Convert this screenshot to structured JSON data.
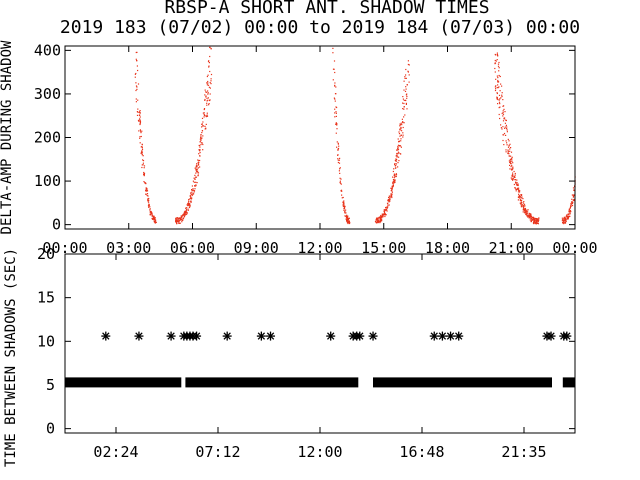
{
  "chart_data": [
    {
      "type": "scatter",
      "title": "RBSP-A SHORT ANT. SHADOW TIMES",
      "subtitle": "2019 183 (07/02) 00:00 to 2019 184 (07/03) 00:00",
      "ylabel": "DELTA-AMP DURING SHADOW",
      "xlim": [
        0,
        24
      ],
      "ylim": [
        -10,
        410
      ],
      "x_tick_labels": [
        "00:00",
        "03:00",
        "06:00",
        "09:00",
        "12:00",
        "15:00",
        "18:00",
        "21:00",
        "00:00"
      ],
      "y_tick_labels": [
        "0",
        "100",
        "200",
        "300",
        "400"
      ],
      "y_ticks": [
        0,
        100,
        200,
        300,
        400
      ],
      "marker_color": "#e8341c",
      "grid": false,
      "clusters": [
        {
          "name": "A1",
          "t": [
            3.3,
            4.3
          ],
          "ymax": 400,
          "side": "down"
        },
        {
          "name": "A2",
          "t": [
            5.2,
            6.9
          ],
          "ymax": 400,
          "side": "up"
        },
        {
          "name": "B1",
          "t": [
            12.6,
            13.4
          ],
          "ymax": 400,
          "side": "down"
        },
        {
          "name": "B2",
          "t": [
            14.6,
            16.2
          ],
          "ymax": 400,
          "side": "up"
        },
        {
          "name": "C1",
          "t": [
            20.2,
            22.3
          ],
          "ymax": 400,
          "side": "down"
        },
        {
          "name": "C2",
          "t": [
            23.4,
            24.0
          ],
          "ymax": 90,
          "side": "up"
        }
      ]
    },
    {
      "type": "scatter",
      "ylabel": "TIME BETWEEN SHADOWS (SEC)",
      "xlim": [
        0,
        1.0
      ],
      "ylim": [
        -0.5,
        20
      ],
      "x_tick_labels": [
        "02:24",
        "07:12",
        "12:00",
        "16:48",
        "21:35"
      ],
      "y_tick_labels": [
        "0",
        "5",
        "10",
        "15",
        "20"
      ],
      "y_ticks": [
        0,
        5,
        10,
        15,
        20
      ],
      "marker": "asterisk",
      "marker_color": "#000000",
      "band_value": 5.3,
      "band_ranges": [
        [
          0.0,
          0.228
        ],
        [
          0.236,
          0.575
        ],
        [
          0.604,
          0.955
        ],
        [
          0.976,
          1.0
        ]
      ],
      "upper_points_y": 10.6,
      "upper_points_x": [
        0.08,
        0.145,
        0.208,
        0.233,
        0.239,
        0.245,
        0.251,
        0.258,
        0.318,
        0.385,
        0.403,
        0.521,
        0.565,
        0.572,
        0.578,
        0.604,
        0.724,
        0.74,
        0.756,
        0.772,
        0.945,
        0.953,
        0.978,
        0.984
      ]
    }
  ]
}
